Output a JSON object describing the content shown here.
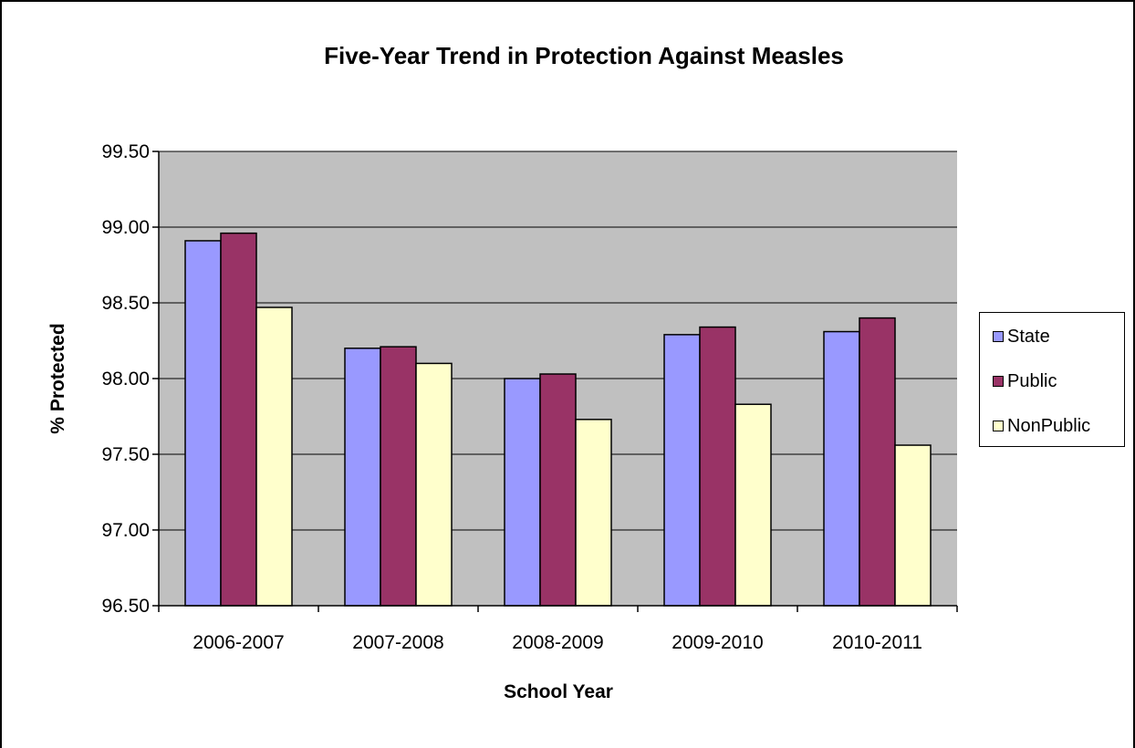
{
  "chart_data": {
    "type": "bar",
    "title": "Five-Year Trend in Protection Against Measles",
    "xlabel": "School Year",
    "ylabel": "% Protected",
    "categories": [
      "2006-2007",
      "2007-2008",
      "2008-2009",
      "2009-2010",
      "2010-2011"
    ],
    "series": [
      {
        "name": "State",
        "color": "#9999ff",
        "values": [
          98.91,
          98.2,
          98.0,
          98.29,
          98.31
        ]
      },
      {
        "name": "Public",
        "color": "#993366",
        "values": [
          98.96,
          98.21,
          98.03,
          98.34,
          98.4
        ]
      },
      {
        "name": "NonPublic",
        "color": "#ffffcc",
        "values": [
          98.47,
          98.1,
          97.73,
          97.83,
          97.56
        ]
      }
    ],
    "ylim": [
      96.5,
      99.5
    ],
    "yticks": [
      96.5,
      97.0,
      97.5,
      98.0,
      98.5,
      99.0,
      99.5
    ],
    "ytick_labels": [
      "96.50",
      "97.00",
      "97.50",
      "98.00",
      "98.50",
      "99.00",
      "99.50"
    ],
    "grid": true,
    "plot_background": "#c0c0c0",
    "legend_position": "right"
  }
}
